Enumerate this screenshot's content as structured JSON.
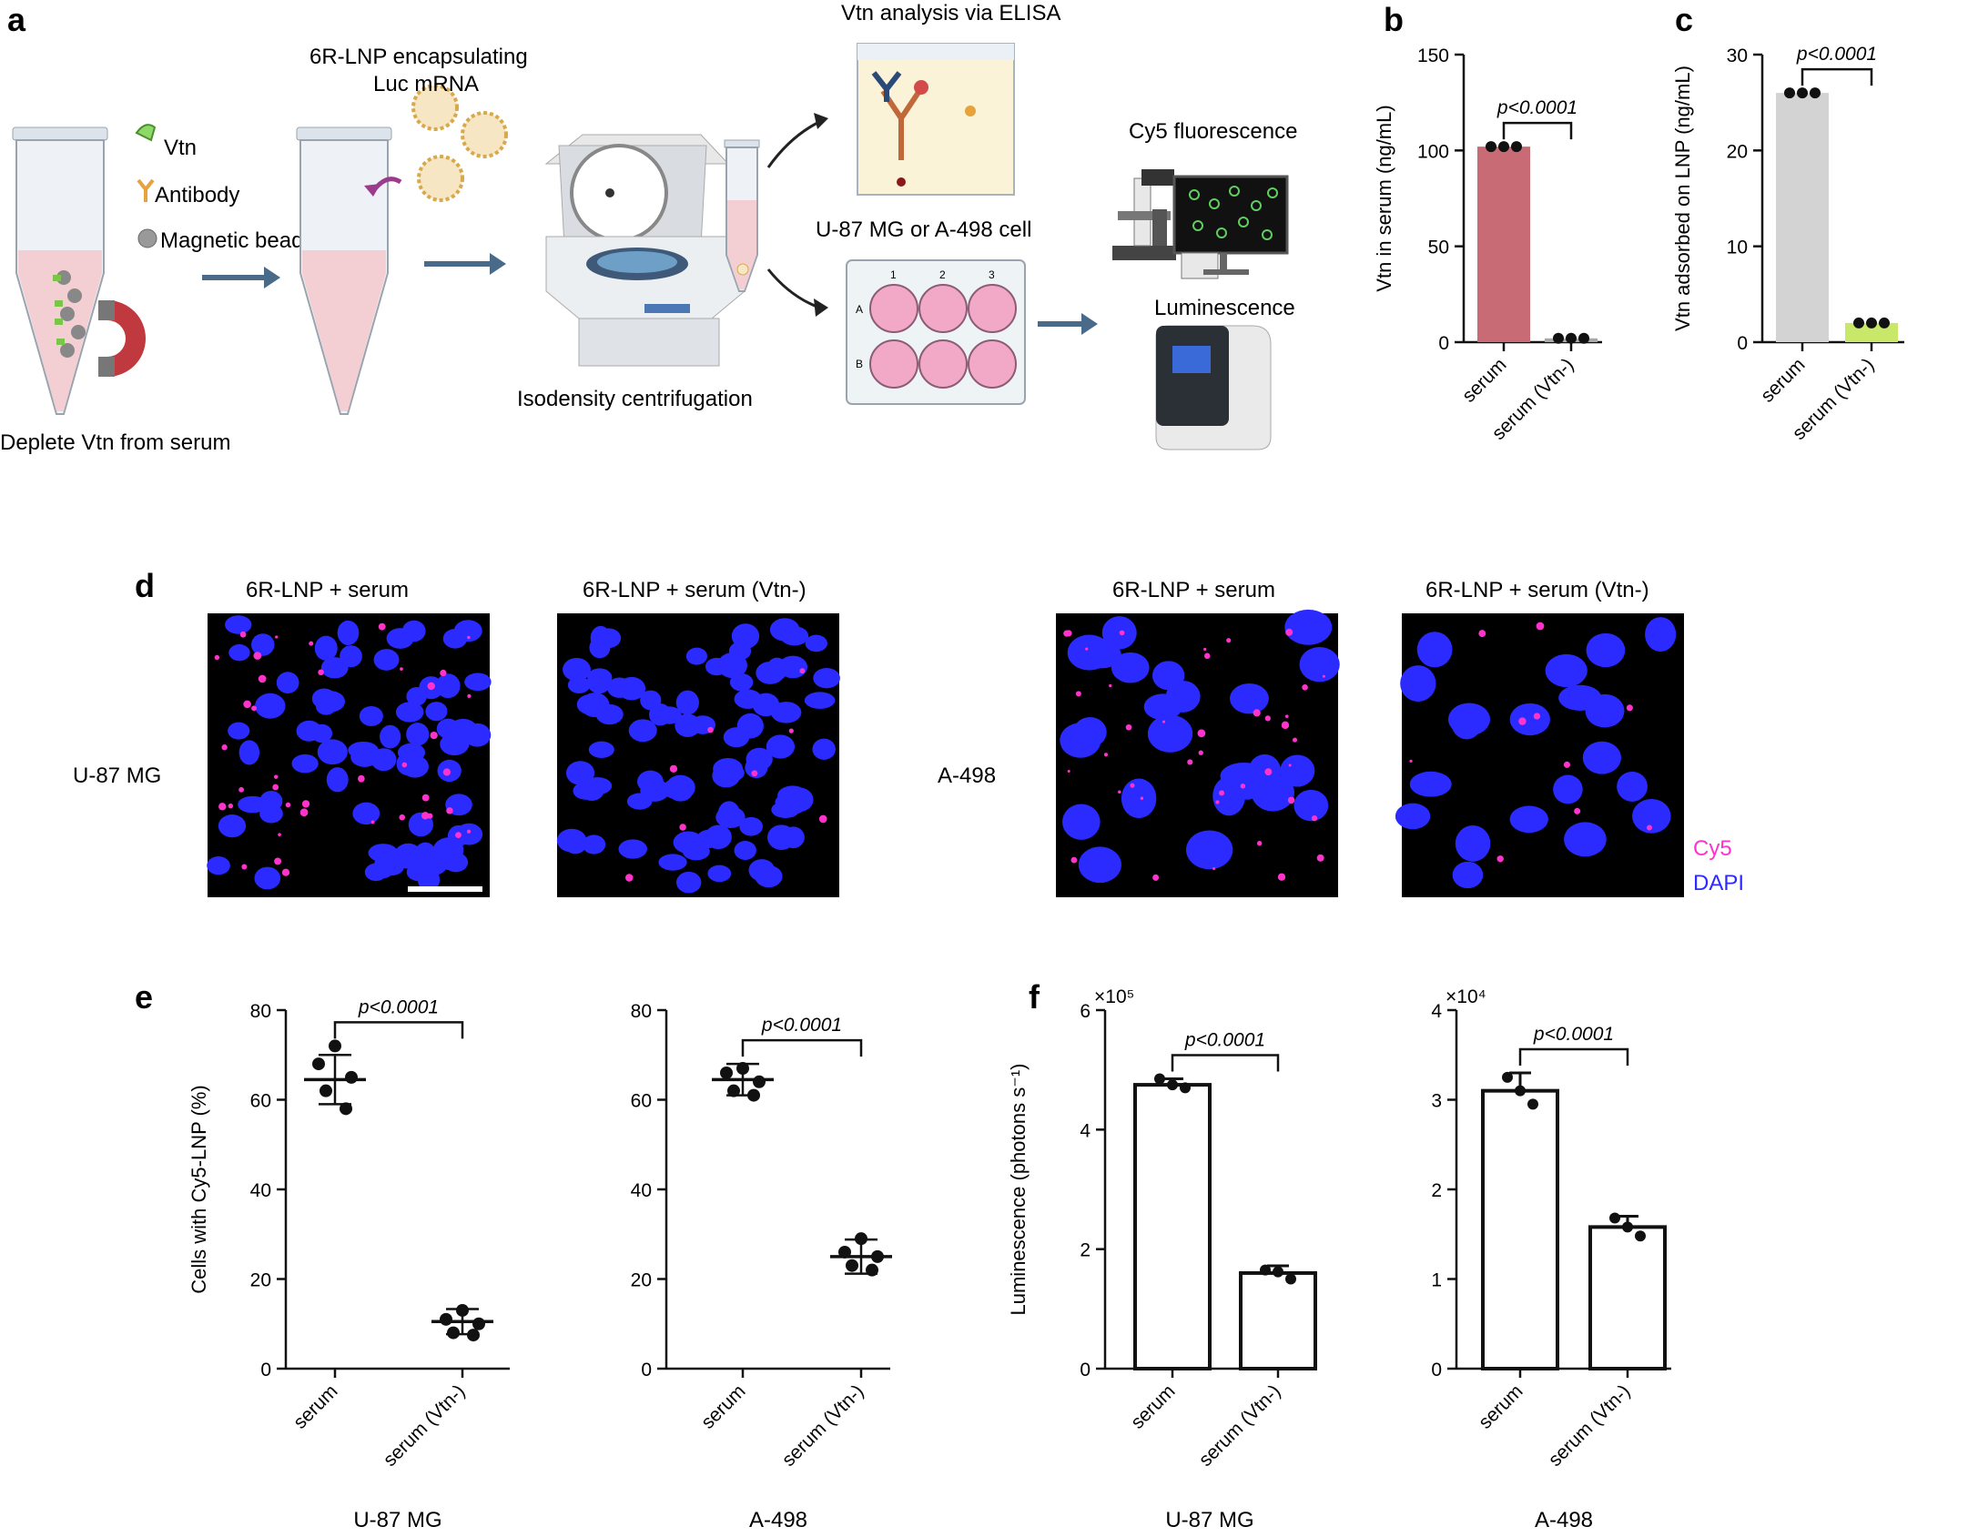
{
  "panel_letters": {
    "a": "a",
    "b": "b",
    "c": "c",
    "d": "d",
    "e": "e",
    "f": "f"
  },
  "schematic": {
    "deplete_caption": "Deplete Vtn from serum",
    "legend_vtn": "Vtn",
    "legend_antibody": "Antibody",
    "legend_bead": "Magnetic bead",
    "lnp_line1": "6R-LNP encapsulating",
    "lnp_line2": "Luc mRNA",
    "centrifuge_caption": "Isodensity centrifugation",
    "elisa_caption": "Vtn analysis via ELISA",
    "cell_caption": "U-87 MG or A-498 cell",
    "cy5_caption": "Cy5 fluorescence",
    "lum_caption": "Luminescence",
    "plate_cols": [
      "1",
      "2",
      "3"
    ],
    "plate_rows": [
      "A",
      "B"
    ]
  },
  "microscopy": {
    "col_titles": [
      "6R-LNP + serum",
      "6R-LNP + serum (Vtn-)",
      "6R-LNP + serum",
      "6R-LNP + serum (Vtn-)"
    ],
    "row_label_left": "U-87 MG",
    "row_label_right": "A-498",
    "legend_cy5": "Cy5",
    "legend_dapi": "DAPI",
    "colors": {
      "cy5": "#ff33cc",
      "dapi": "#2b2bff"
    }
  },
  "chart_data": [
    {
      "id": "b",
      "type": "bar",
      "ylabel": "Vtn in serum (ng/mL)",
      "categories": [
        "serum",
        "serum (Vtn-)"
      ],
      "values": [
        102,
        2
      ],
      "points": [
        [
          102,
          102,
          102
        ],
        [
          2,
          2,
          2
        ]
      ],
      "ylim": [
        0,
        150
      ],
      "yticks": [
        0,
        50,
        100,
        150
      ],
      "colors": [
        "#c96b74",
        "#a8a8a8"
      ],
      "annotation": "p<0.0001"
    },
    {
      "id": "c",
      "type": "bar",
      "ylabel": "Vtn adsorbed on LNP (ng/mL)",
      "categories": [
        "serum",
        "serum (Vtn-)"
      ],
      "values": [
        26,
        2
      ],
      "points": [
        [
          26,
          26,
          26
        ],
        [
          2,
          2,
          2
        ]
      ],
      "ylim": [
        0,
        30
      ],
      "yticks": [
        0,
        10,
        20,
        30
      ],
      "colors": [
        "#d3d3d3",
        "#c9e86a"
      ],
      "annotation": "p<0.0001"
    },
    {
      "id": "e1",
      "type": "scatter",
      "ylabel": "Cells with Cy5-LNP (%)",
      "xcaption": "U-87 MG",
      "categories": [
        "serum",
        "serum (Vtn-)"
      ],
      "means": [
        64.5,
        10.5
      ],
      "sd": [
        5.5,
        2.8
      ],
      "points": [
        [
          72,
          68,
          65,
          62,
          58
        ],
        [
          13,
          11,
          10,
          8,
          7.5
        ]
      ],
      "ylim": [
        0,
        80
      ],
      "yticks": [
        0,
        20,
        40,
        60,
        80
      ],
      "annotation": "p<0.0001"
    },
    {
      "id": "e2",
      "type": "scatter",
      "xcaption": "A-498",
      "categories": [
        "serum",
        "serum (Vtn-)"
      ],
      "means": [
        64.5,
        25
      ],
      "sd": [
        3.5,
        3.8
      ],
      "points": [
        [
          67,
          66,
          64,
          62,
          61
        ],
        [
          29,
          26,
          25,
          23,
          22
        ]
      ],
      "ylim": [
        0,
        80
      ],
      "yticks": [
        0,
        20,
        40,
        60,
        80
      ],
      "annotation": "p<0.0001"
    },
    {
      "id": "f1",
      "type": "bar",
      "ylabel": "Luminescence (photons s⁻¹)",
      "xcaption": "U-87 MG",
      "multiplier": "×10⁵",
      "categories": [
        "serum",
        "serum (Vtn-)"
      ],
      "values": [
        4.75,
        1.6
      ],
      "sd": [
        0.1,
        0.12
      ],
      "points": [
        [
          4.85,
          4.75,
          4.7
        ],
        [
          1.65,
          1.62,
          1.5
        ]
      ],
      "ylim": [
        0,
        6
      ],
      "yticks": [
        0,
        2,
        4,
        6
      ],
      "annotation": "p<0.0001"
    },
    {
      "id": "f2",
      "type": "bar",
      "xcaption": "A-498",
      "multiplier": "×10⁴",
      "categories": [
        "serum",
        "serum (Vtn-)"
      ],
      "values": [
        3.1,
        1.58
      ],
      "sd": [
        0.2,
        0.12
      ],
      "points": [
        [
          3.25,
          3.1,
          2.95
        ],
        [
          1.68,
          1.58,
          1.48
        ]
      ],
      "ylim": [
        0,
        4
      ],
      "yticks": [
        0,
        1,
        2,
        3,
        4
      ],
      "annotation": "p<0.0001"
    }
  ]
}
